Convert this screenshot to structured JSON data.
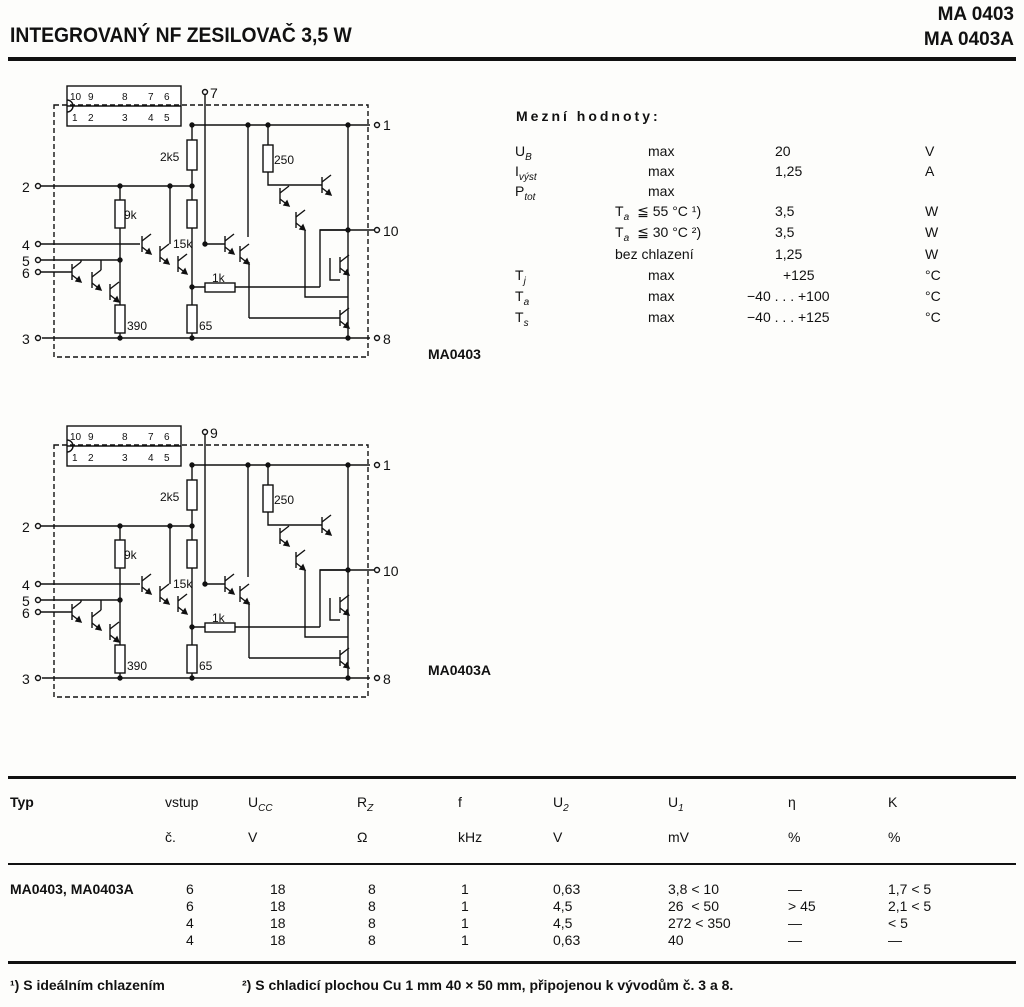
{
  "header": {
    "title": "INTEGROVANÝ NF ZESILOVAČ 3,5 W",
    "models": [
      "MA 0403",
      "MA 0403A"
    ]
  },
  "schematics": [
    {
      "label": "MA0403",
      "top_pin": "7",
      "package_top_pins": [
        "10",
        "9",
        "8",
        "7",
        "6"
      ],
      "package_bottom_pins": [
        "1",
        "2",
        "3",
        "4",
        "5"
      ],
      "pins": {
        "p1": "1",
        "p2": "2",
        "p3": "3",
        "p4": "4",
        "p5": "5",
        "p6": "6",
        "p8": "8",
        "p10": "10"
      },
      "resistors": {
        "r2k5": "2k5",
        "r250": "250",
        "r9k": "9k",
        "r15k": "15k",
        "r1k": "1k",
        "r390": "390",
        "r65": "65"
      }
    },
    {
      "label": "MA0403A",
      "top_pin": "9",
      "package_top_pins": [
        "10",
        "9",
        "8",
        "7",
        "6"
      ],
      "package_bottom_pins": [
        "1",
        "2",
        "3",
        "4",
        "5"
      ],
      "pins": {
        "p1": "1",
        "p2": "2",
        "p3": "3",
        "p4": "4",
        "p5": "5",
        "p6": "6",
        "p8": "8",
        "p10": "10"
      },
      "resistors": {
        "r2k5": "2k5",
        "r250": "250",
        "r9k": "9k",
        "r15k": "15k",
        "r1k": "1k",
        "r390": "390",
        "r65": "65"
      }
    }
  ],
  "limits": {
    "title": "Mezní hodnoty:",
    "rows": [
      {
        "sym": "U",
        "sub": "B",
        "cond": "",
        "max": "max",
        "value": "20",
        "unit": "V"
      },
      {
        "sym": "I",
        "sub": "výst",
        "cond": "",
        "max": "max",
        "value": "1,25",
        "unit": "A"
      },
      {
        "sym": "P",
        "sub": "tot",
        "cond": "",
        "max": "max",
        "value": "",
        "unit": ""
      },
      {
        "sym": "",
        "sub": "",
        "cond": "T",
        "condsub": "a",
        "condrest": "≦ 55 °C ¹)",
        "max": "",
        "value": "3,5",
        "unit": "W"
      },
      {
        "sym": "",
        "sub": "",
        "cond": "T",
        "condsub": "a",
        "condrest": "≦ 30 °C ²)",
        "max": "",
        "value": "3,5",
        "unit": "W"
      },
      {
        "sym": "",
        "sub": "",
        "cond": "bez chlazení",
        "condsub": "",
        "condrest": "",
        "max": "",
        "value": "1,25",
        "unit": "W"
      },
      {
        "sym": "T",
        "sub": "j",
        "cond": "",
        "max": "max",
        "value": "+125",
        "unit": "°C"
      },
      {
        "sym": "T",
        "sub": "a",
        "cond": "",
        "max": "max",
        "value": "−40 . . . +100",
        "unit": "°C"
      },
      {
        "sym": "T",
        "sub": "s",
        "cond": "",
        "max": "max",
        "value": "−40 . . . +125",
        "unit": "°C"
      }
    ]
  },
  "table": {
    "headers": [
      {
        "name": "Typ",
        "unit": ""
      },
      {
        "name": "vstup",
        "unit": "č."
      },
      {
        "name": "U",
        "sub": "CC",
        "unit": "V"
      },
      {
        "name": "R",
        "sub": "Z",
        "unit": "Ω"
      },
      {
        "name": "f",
        "unit": "kHz"
      },
      {
        "name": "U",
        "sub": "2",
        "unit": "V"
      },
      {
        "name": "U",
        "sub": "1",
        "unit": "mV"
      },
      {
        "name": "η",
        "unit": "%"
      },
      {
        "name": "K",
        "unit": "%"
      }
    ],
    "type_label": "MA0403, MA0403A",
    "rows": [
      [
        "6",
        "18",
        "8",
        "1",
        "0,63",
        "3,8 < 10",
        "—",
        "1,7 < 5"
      ],
      [
        "6",
        "18",
        "8",
        "1",
        "4,5",
        "26  < 50",
        "> 45",
        "2,1 < 5"
      ],
      [
        "4",
        "18",
        "8",
        "1",
        "4,5",
        "272 < 350",
        "—",
        "< 5"
      ],
      [
        "4",
        "18",
        "8",
        "1",
        "0,63",
        "40",
        "—",
        "—"
      ]
    ]
  },
  "footnotes": [
    "¹) S ideálním chlazením",
    "²) S chladicí plochou Cu 1 mm 40 × 50 mm, připojenou k vývodům č. 3 a 8."
  ]
}
